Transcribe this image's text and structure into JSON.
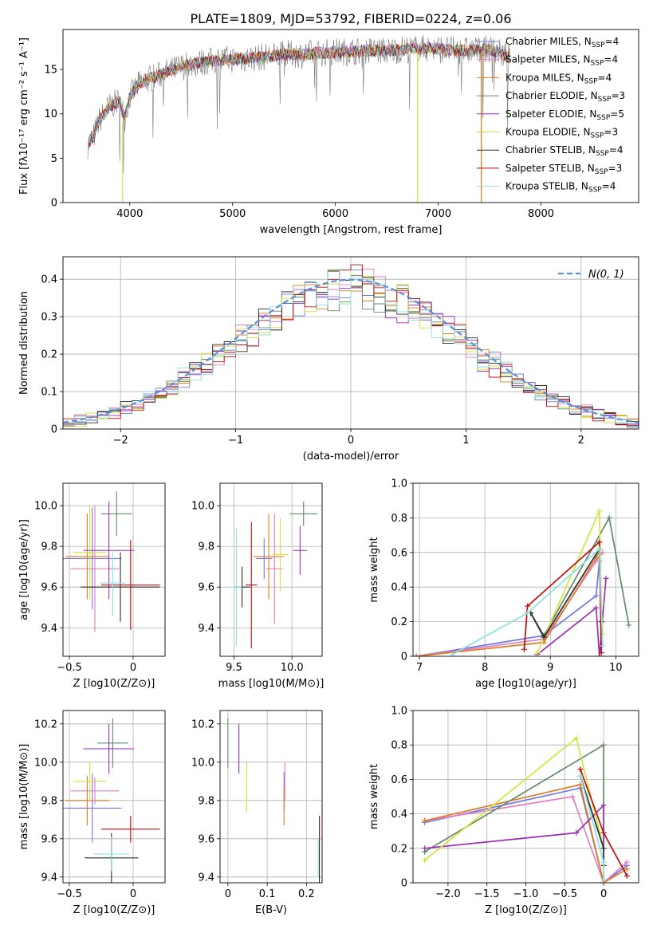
{
  "title": "PLATE=1809, MJD=53792, FIBERID=0224, z=0.06",
  "colors": [
    "#6e77e6",
    "#e07ec4",
    "#e07b20",
    "#5f8a66",
    "#9a2fb6",
    "#d4e23c",
    "#2a2a2a",
    "#bb0d0d",
    "#8ee0e0"
  ],
  "chart_data": [
    {
      "id": "spectrum",
      "type": "line",
      "title": "PLATE=1809, MJD=53792, FIBERID=0224, z=0.06",
      "xlabel": "wavelength [Angstrom, rest frame]",
      "ylabel": "Flux [fλ10⁻¹⁷ erg cm⁻² s⁻¹ A⁻¹]",
      "xlim": [
        3350,
        8950
      ],
      "ylim": [
        0,
        19.5
      ],
      "xticks": [
        4000,
        5000,
        6000,
        7000,
        8000
      ],
      "yticks": [
        0,
        5,
        10,
        15
      ],
      "grid": false,
      "legend_position": "right",
      "legend": [
        "Chabrier MILES, N_SSP=4",
        "Salpeter MILES, N_SSP=4",
        "Kroupa MILES, N_SSP=4",
        "Chabrier ELODIE, N_SSP=3",
        "Salpeter ELODIE, N_SSP=5",
        "Kroupa ELODIE, N_SSP=3",
        "Chabrier STELIB, N_SSP=4",
        "Salpeter STELIB, N_SSP=3",
        "Kroupa STELIB, N_SSP=4"
      ],
      "legend_colors": [
        "#6e77e6",
        "#e07ec4",
        "#e07b20",
        "#5f8a66",
        "#9a2fb6",
        "#d4e23c",
        "#2a2a2a",
        "#bb0d0d",
        "#8ee0e0"
      ],
      "continuum": [
        [
          3590,
          6.5
        ],
        [
          3650,
          7.5
        ],
        [
          3700,
          9.2
        ],
        [
          3800,
          10.8
        ],
        [
          3900,
          11.5
        ],
        [
          3950,
          9.5
        ],
        [
          4000,
          12.0
        ],
        [
          4100,
          13.5
        ],
        [
          4300,
          14.4
        ],
        [
          4500,
          15.3
        ],
        [
          4700,
          15.8
        ],
        [
          4900,
          16.1
        ],
        [
          5100,
          16.2
        ],
        [
          5300,
          16.4
        ],
        [
          5500,
          16.7
        ],
        [
          5700,
          16.7
        ],
        [
          5900,
          16.9
        ],
        [
          6100,
          17.0
        ],
        [
          6300,
          17.1
        ],
        [
          6500,
          17.1
        ],
        [
          6700,
          17.3
        ],
        [
          6900,
          17.4
        ],
        [
          7100,
          17.2
        ],
        [
          7300,
          17.1
        ],
        [
          7500,
          17.3
        ],
        [
          7700,
          16.4
        ],
        [
          7900,
          15.6
        ],
        [
          8100,
          14.5
        ],
        [
          8300,
          14.2
        ],
        [
          8500,
          13.5
        ],
        [
          8700,
          13.0
        ]
      ]
    },
    {
      "id": "residuals",
      "type": "histogram",
      "xlabel": "(data-model)/error",
      "ylabel": "Normed distribution",
      "xlim": [
        -2.5,
        2.5
      ],
      "ylim": [
        0,
        0.46
      ],
      "xticks": [
        -2,
        -1,
        0,
        1,
        2
      ],
      "yticks": [
        0.0,
        0.1,
        0.2,
        0.3,
        0.4
      ],
      "grid": true,
      "legend": [
        "N(0, 1)"
      ],
      "legend_position": "top-right",
      "bin_width": 0.1,
      "reference": "normal(0,1)"
    },
    {
      "id": "age-vs-Z",
      "type": "errorbar",
      "xlabel": "Z [log10(Z/Z⊙)]",
      "ylabel": "age  [log10(age/yr)]",
      "xlim": [
        -0.55,
        0.25
      ],
      "ylim": [
        9.26,
        10.11
      ],
      "xticks": [
        -0.5,
        0.0
      ],
      "yticks": [
        9.4,
        9.6,
        9.8,
        10.0
      ],
      "grid": true,
      "points": [
        {
          "x": -0.32,
          "y": 9.74,
          "xerr": 0.23,
          "yerr": 0.25
        },
        {
          "x": -0.3,
          "y": 9.69,
          "xerr": 0.19,
          "yerr": 0.31
        },
        {
          "x": -0.36,
          "y": 9.75,
          "xerr": 0.17,
          "yerr": 0.21
        },
        {
          "x": -0.13,
          "y": 9.96,
          "xerr": 0.12,
          "yerr": 0.11
        },
        {
          "x": -0.19,
          "y": 9.78,
          "xerr": 0.2,
          "yerr": 0.24
        },
        {
          "x": -0.34,
          "y": 9.77,
          "xerr": 0.13,
          "yerr": 0.23
        },
        {
          "x": -0.1,
          "y": 9.6,
          "xerr": 0.31,
          "yerr": 0.17
        },
        {
          "x": -0.02,
          "y": 9.61,
          "xerr": 0.23,
          "yerr": 0.22
        },
        {
          "x": -0.16,
          "y": 9.62,
          "xerr": 0.1,
          "yerr": 0.16
        }
      ]
    },
    {
      "id": "age-vs-mass",
      "type": "errorbar",
      "xlabel": "mass [log10(M/M⊙)]",
      "ylabel": "",
      "xlim": [
        9.38,
        10.26
      ],
      "ylim": [
        9.26,
        10.11
      ],
      "xticks": [
        9.5,
        10.0
      ],
      "yticks": [
        9.4,
        9.6,
        9.8,
        10.0
      ],
      "grid": true,
      "points": [
        {
          "x": 9.76,
          "y": 9.74,
          "xerr": 0.07,
          "yerr": 0.1
        },
        {
          "x": 9.85,
          "y": 9.69,
          "xerr": 0.07,
          "yerr": 0.27
        },
        {
          "x": 9.8,
          "y": 9.75,
          "xerr": 0.13,
          "yerr": 0.21
        },
        {
          "x": 10.1,
          "y": 9.96,
          "xerr": 0.12,
          "yerr": 0.06
        },
        {
          "x": 10.07,
          "y": 9.78,
          "xerr": 0.06,
          "yerr": 0.12
        },
        {
          "x": 9.9,
          "y": 9.76,
          "xerr": 0.07,
          "yerr": 0.18
        },
        {
          "x": 9.57,
          "y": 9.6,
          "xerr": 0.07,
          "yerr": 0.1
        },
        {
          "x": 9.65,
          "y": 9.61,
          "xerr": 0.05,
          "yerr": 0.31
        },
        {
          "x": 9.52,
          "y": 9.6,
          "xerr": 0.05,
          "yerr": 0.29
        }
      ]
    },
    {
      "id": "weight-vs-age",
      "type": "line",
      "xlabel": "age  [log10(age/yr)]",
      "ylabel": "mass weight",
      "xlim": [
        6.9,
        10.35
      ],
      "ylim": [
        0,
        1.0
      ],
      "xticks": [
        7,
        8,
        9,
        10
      ],
      "yticks": [
        0.0,
        0.2,
        0.4,
        0.6,
        0.8,
        1.0
      ],
      "grid": true,
      "series": [
        {
          "x": [
            6.95,
            8.9,
            9.7,
            9.75
          ],
          "y": [
            0.0,
            0.12,
            0.35,
            0.55
          ]
        },
        {
          "x": [
            6.95,
            8.9,
            9.7,
            9.8
          ],
          "y": [
            0.0,
            0.1,
            0.55,
            0.6
          ]
        },
        {
          "x": [
            6.95,
            8.9,
            9.7,
            9.75
          ],
          "y": [
            0.0,
            0.08,
            0.57,
            0.6
          ]
        },
        {
          "x": [
            8.7,
            8.9,
            9.9,
            10.2
          ],
          "y": [
            0.25,
            0.12,
            0.8,
            0.18
          ]
        },
        {
          "x": [
            8.8,
            9.7,
            9.75,
            9.85
          ],
          "y": [
            0.01,
            0.28,
            0.0,
            0.45
          ]
        },
        {
          "x": [
            8.8,
            9.75,
            9.78,
            9.8
          ],
          "y": [
            0.02,
            0.84,
            0.3,
            0.13
          ]
        },
        {
          "x": [
            8.7,
            8.9,
            9.75,
            9.78
          ],
          "y": [
            0.25,
            0.11,
            0.62,
            0.2
          ]
        },
        {
          "x": [
            8.6,
            8.65,
            9.75,
            9.78
          ],
          "y": [
            0.04,
            0.29,
            0.66,
            0.02
          ]
        },
        {
          "x": [
            7.5,
            8.65,
            9.75,
            9.8
          ],
          "y": [
            0.01,
            0.25,
            0.62,
            0.06
          ]
        }
      ]
    },
    {
      "id": "mass-vs-Z",
      "type": "errorbar",
      "xlabel": "Z [log10(Z/Z⊙)]",
      "ylabel": "mass [log10(M/M⊙)]",
      "xlim": [
        -0.55,
        0.25
      ],
      "ylim": [
        9.37,
        10.27
      ],
      "xticks": [
        -0.5,
        0.0
      ],
      "yticks": [
        9.4,
        9.6,
        9.8,
        10.0,
        10.2
      ],
      "grid": true,
      "points": [
        {
          "x": -0.32,
          "y": 9.76,
          "xerr": 0.23,
          "yerr": 0.18
        },
        {
          "x": -0.3,
          "y": 9.85,
          "xerr": 0.19,
          "yerr": 0.07
        },
        {
          "x": -0.36,
          "y": 9.8,
          "xerr": 0.17,
          "yerr": 0.13
        },
        {
          "x": -0.16,
          "y": 10.1,
          "xerr": 0.12,
          "yerr": 0.13
        },
        {
          "x": -0.19,
          "y": 10.07,
          "xerr": 0.2,
          "yerr": 0.13
        },
        {
          "x": -0.34,
          "y": 9.9,
          "xerr": 0.13,
          "yerr": 0.1
        },
        {
          "x": -0.17,
          "y": 9.5,
          "xerr": 0.21,
          "yerr": 0.13
        },
        {
          "x": -0.02,
          "y": 9.65,
          "xerr": 0.23,
          "yerr": 0.07
        },
        {
          "x": -0.17,
          "y": 9.52,
          "xerr": 0.14,
          "yerr": 0.09
        }
      ]
    },
    {
      "id": "mass-vs-ebv",
      "type": "errorbar",
      "xlabel": "E(B-V)",
      "ylabel": "",
      "xlim": [
        -0.02,
        0.24
      ],
      "ylim": [
        9.37,
        10.27
      ],
      "xticks": [
        0.0,
        0.1,
        0.2
      ],
      "yticks": [
        9.4,
        9.6,
        9.8,
        10.0,
        10.2
      ],
      "grid": true,
      "points": [
        {
          "x": 0.143,
          "y": 9.85,
          "xerr": 0,
          "yerr": 0.1
        },
        {
          "x": 0.145,
          "y": 9.9,
          "xerr": 0,
          "yerr": 0.1
        },
        {
          "x": 0.143,
          "y": 9.77,
          "xerr": 0,
          "yerr": 0.1
        },
        {
          "x": 0.0,
          "y": 10.1,
          "xerr": 0,
          "yerr": 0.13
        },
        {
          "x": 0.028,
          "y": 10.07,
          "xerr": 0,
          "yerr": 0.13
        },
        {
          "x": 0.048,
          "y": 9.87,
          "xerr": 0,
          "yerr": 0.13
        },
        {
          "x": 0.233,
          "y": 9.5,
          "xerr": 0,
          "yerr": 0.13
        },
        {
          "x": 0.233,
          "y": 9.65,
          "xerr": 0,
          "yerr": 0.07
        },
        {
          "x": 0.23,
          "y": 9.5,
          "xerr": 0,
          "yerr": 0.1
        }
      ]
    },
    {
      "id": "weight-vs-Z",
      "type": "line",
      "xlabel": "Z [log10(Z/Z⊙)]",
      "ylabel": "mass weight",
      "xlim": [
        -2.45,
        0.45
      ],
      "ylim": [
        0,
        1.0
      ],
      "xticks": [
        -2.0,
        -1.5,
        -1.0,
        -0.5,
        0.0
      ],
      "yticks": [
        0.0,
        0.2,
        0.4,
        0.6,
        0.8,
        1.0
      ],
      "grid": true,
      "series": [
        {
          "x": [
            -2.3,
            -0.3,
            0.0,
            0.3
          ],
          "y": [
            0.35,
            0.55,
            0.0,
            0.1
          ]
        },
        {
          "x": [
            -2.3,
            -0.4,
            0.0,
            0.3
          ],
          "y": [
            0.36,
            0.5,
            0.0,
            0.12
          ]
        },
        {
          "x": [
            -2.3,
            -0.3,
            0.0,
            0.3
          ],
          "y": [
            0.36,
            0.57,
            0.0,
            0.08
          ]
        },
        {
          "x": [
            -2.3,
            0.0,
            0.0
          ],
          "y": [
            0.18,
            0.8,
            0.0
          ]
        },
        {
          "x": [
            -2.3,
            -0.35,
            0.0,
            0.0
          ],
          "y": [
            0.2,
            0.29,
            0.45,
            0.0
          ]
        },
        {
          "x": [
            -2.3,
            -0.35,
            0.0,
            0.0
          ],
          "y": [
            0.13,
            0.84,
            0.2,
            0.0
          ]
        },
        {
          "x": [
            -0.3,
            0.0,
            0.0
          ],
          "y": [
            0.62,
            0.2,
            0.1
          ]
        },
        {
          "x": [
            -0.3,
            0.0,
            0.3
          ],
          "y": [
            0.66,
            0.29,
            0.04
          ]
        },
        {
          "x": [
            -0.3,
            0.0,
            0.0
          ],
          "y": [
            0.62,
            0.12,
            0.02
          ]
        }
      ]
    }
  ]
}
